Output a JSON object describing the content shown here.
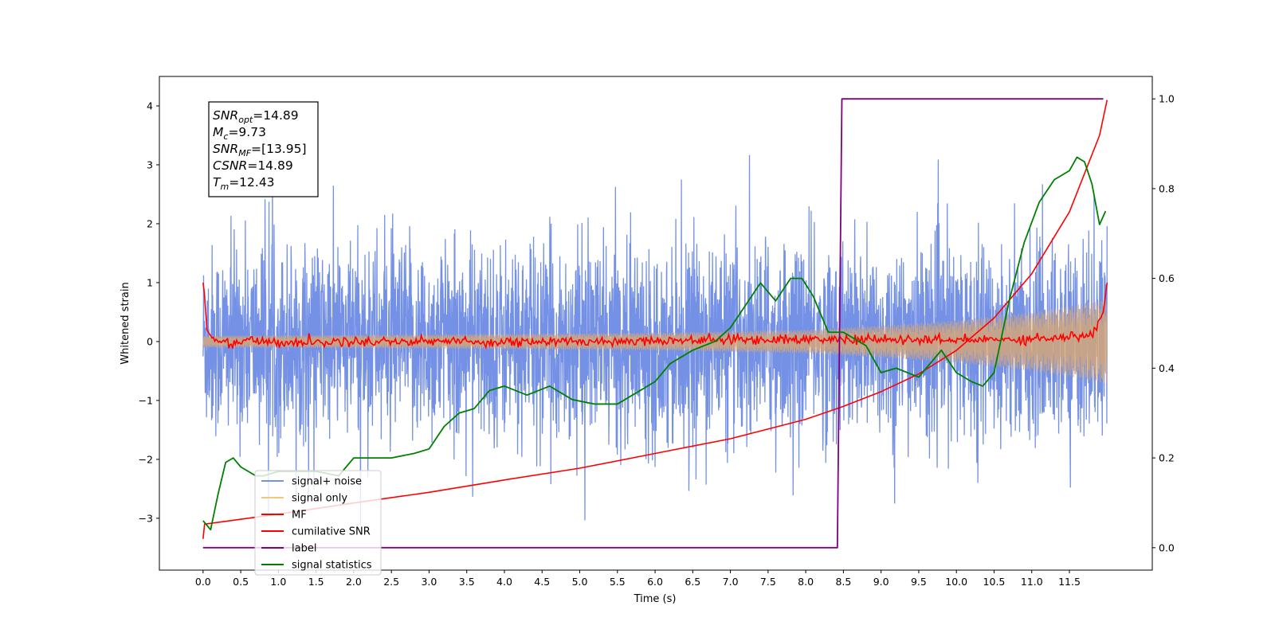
{
  "chart_data": {
    "type": "line",
    "xlabel": "Time (s)",
    "ylabel": "Whitened strain",
    "xlim": [
      -0.58,
      12.6
    ],
    "ylim": [
      -3.88,
      4.5
    ],
    "y2lim": [
      -0.05,
      1.05
    ],
    "x_ticks": [
      "0.0",
      "0.5",
      "1.0",
      "1.5",
      "2.0",
      "2.5",
      "3.0",
      "3.5",
      "4.0",
      "4.5",
      "5.0",
      "5.5",
      "6.0",
      "6.5",
      "7.0",
      "7.5",
      "8.0",
      "8.5",
      "9.0",
      "9.5",
      "10.0",
      "10.5",
      "11.0",
      "11.5"
    ],
    "y_ticks": [
      "4",
      "3",
      "2",
      "1",
      "0",
      "−1",
      "−2",
      "−3"
    ],
    "y2_ticks": [
      "1.0",
      "0.8",
      "0.6",
      "0.4",
      "0.2",
      "0.0"
    ],
    "annotation": [
      {
        "main": "SNR",
        "sub": "opt",
        "value": "=14.89"
      },
      {
        "main": "M",
        "sub": "c",
        "value": "=9.73"
      },
      {
        "main": "SNR",
        "sub": "MF",
        "value": "=[13.95]"
      },
      {
        "main": "CSNR",
        "sub": "",
        "value": "=14.89"
      },
      {
        "main": "T",
        "sub": "m",
        "value": "=12.43"
      }
    ],
    "legend": {
      "placement": "lower-left",
      "entries": [
        {
          "label": "signal+ noise",
          "color": "#7491e6"
        },
        {
          "label": "signal only",
          "color": "#f5c77e"
        },
        {
          "label": "MF",
          "color": "#ff0000"
        },
        {
          "label": "cumilative SNR",
          "color": "#ff0000"
        },
        {
          "label": "label",
          "color": "#800080"
        },
        {
          "label": "signal statistics",
          "color": "#008000"
        }
      ]
    },
    "series": [
      {
        "name": "signal+ noise",
        "axis": "left",
        "color": "#7491e6",
        "x_range": [
          0,
          12.0
        ],
        "noise_sigma": 0.85,
        "noise_range": [
          -3.5,
          4.2
        ]
      },
      {
        "name": "signal only",
        "axis": "left",
        "color": "#d2a679",
        "x_range": [
          0,
          12.0
        ],
        "envelope": {
          "x": [
            0,
            3,
            6,
            8,
            9,
            10,
            11,
            11.5,
            12.0
          ],
          "amp": [
            0.1,
            0.12,
            0.15,
            0.2,
            0.27,
            0.36,
            0.5,
            0.6,
            0.72
          ]
        }
      },
      {
        "name": "MF",
        "axis": "left",
        "color": "#ff0000",
        "x": [
          0,
          0.02,
          0.05,
          0.1,
          0.15,
          0.25,
          0.4,
          0.6,
          1.0,
          2.0,
          3.0,
          4.0,
          5.0,
          6.0,
          7.0,
          8.0,
          9.0,
          10.0,
          11.0,
          11.8,
          11.95,
          12.0
        ],
        "y": [
          1.0,
          0.8,
          0.2,
          0.1,
          0.0,
          0.02,
          -0.03,
          0.03,
          -0.02,
          0.0,
          0.01,
          -0.01,
          0.0,
          0.02,
          0.03,
          0.04,
          0.03,
          0.02,
          0.05,
          0.1,
          0.5,
          1.0
        ],
        "jitter": 0.04
      },
      {
        "name": "cumilative SNR",
        "axis": "left",
        "color": "#ff0000",
        "x": [
          0,
          0.02,
          1.0,
          2.0,
          3.0,
          4.0,
          5.0,
          6.0,
          7.0,
          8.0,
          8.5,
          9.0,
          9.5,
          10.0,
          10.5,
          11.0,
          11.5,
          11.9,
          12.0
        ],
        "y": [
          -3.35,
          -3.1,
          -2.93,
          -2.74,
          -2.56,
          -2.35,
          -2.15,
          -1.9,
          -1.65,
          -1.32,
          -1.1,
          -0.85,
          -0.55,
          -0.15,
          0.4,
          1.15,
          2.2,
          3.5,
          4.1
        ]
      },
      {
        "name": "label",
        "axis": "right",
        "color": "#800080",
        "x": [
          0,
          8.42,
          8.48,
          11.95
        ],
        "y": [
          0.0,
          0.0,
          1.0,
          1.0
        ]
      },
      {
        "name": "signal statistics",
        "axis": "right",
        "color": "#008000",
        "x": [
          0.0,
          0.1,
          0.2,
          0.3,
          0.4,
          0.5,
          0.6,
          0.7,
          0.8,
          1.0,
          1.5,
          1.8,
          2.0,
          2.5,
          2.8,
          3.0,
          3.2,
          3.4,
          3.6,
          3.8,
          4.0,
          4.3,
          4.6,
          4.9,
          5.2,
          5.5,
          5.8,
          6.0,
          6.2,
          6.5,
          6.8,
          7.0,
          7.2,
          7.4,
          7.6,
          7.8,
          7.95,
          8.1,
          8.3,
          8.5,
          8.8,
          9.0,
          9.2,
          9.5,
          9.8,
          10.0,
          10.2,
          10.35,
          10.5,
          10.7,
          10.9,
          11.1,
          11.3,
          11.5,
          11.6,
          11.7,
          11.8,
          11.9,
          11.98
        ],
        "y": [
          0.06,
          0.04,
          0.12,
          0.19,
          0.2,
          0.18,
          0.17,
          0.16,
          0.16,
          0.17,
          0.17,
          0.16,
          0.2,
          0.2,
          0.21,
          0.22,
          0.27,
          0.3,
          0.31,
          0.35,
          0.36,
          0.34,
          0.36,
          0.33,
          0.32,
          0.32,
          0.35,
          0.37,
          0.41,
          0.44,
          0.46,
          0.49,
          0.54,
          0.59,
          0.55,
          0.6,
          0.6,
          0.56,
          0.48,
          0.48,
          0.45,
          0.39,
          0.4,
          0.38,
          0.44,
          0.39,
          0.37,
          0.36,
          0.39,
          0.55,
          0.68,
          0.77,
          0.82,
          0.84,
          0.87,
          0.86,
          0.81,
          0.72,
          0.75
        ]
      }
    ]
  }
}
